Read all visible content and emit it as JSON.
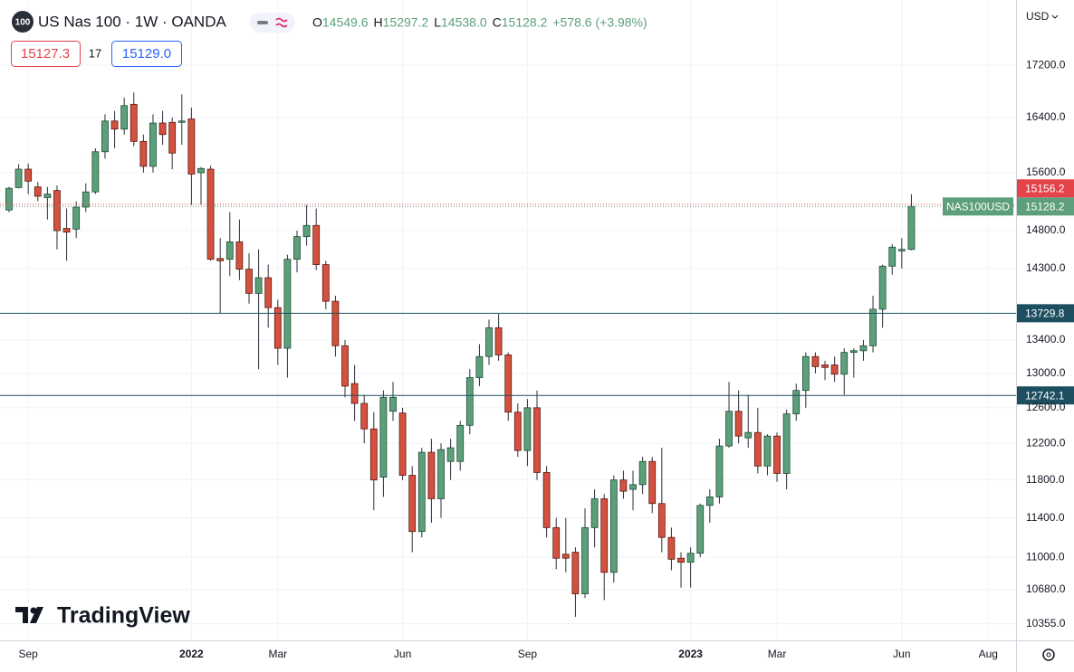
{
  "header": {
    "badge": "100",
    "title": "US Nas 100 · 1W · OANDA",
    "ohlc_keys": [
      "O",
      "H",
      "L",
      "C"
    ],
    "ohlc_texts": [
      "14549.6",
      "15297.2",
      "14538.0",
      "15128.2"
    ],
    "change": "+578.6 (+3.98%)",
    "bid": "15127.3",
    "spread": "17",
    "ask": "15129.0",
    "currency": "USD",
    "logo": "TradingView"
  },
  "chart_data": {
    "type": "candlestick",
    "symbol": "NAS100USD",
    "log_scale": true,
    "grid": true,
    "up_color": "#5e9f7b",
    "down_color": "#d4513f",
    "open": [
      15080,
      15390,
      15650,
      15400,
      15250,
      15350,
      14830,
      14820,
      15120,
      15330,
      15900,
      16350,
      16230,
      16600,
      16050,
      15690,
      16320,
      16330,
      16330,
      16380,
      15600,
      15650,
      14430,
      14420,
      14650,
      14290,
      13980,
      14180,
      13800,
      13300,
      14420,
      14720,
      14870,
      14350,
      13880,
      13330,
      12880,
      12650,
      12360,
      11830,
      12560,
      12540,
      11850,
      11260,
      12100,
      11600,
      12000,
      12000,
      12400,
      12950,
      13200,
      13550,
      13220,
      12550,
      12120,
      12600,
      11880,
      11300,
      11030,
      11050,
      10640,
      11300,
      11600,
      10850,
      11800,
      11700,
      11750,
      12000,
      11550,
      11200,
      10990,
      10950,
      11040,
      11530,
      11620,
      12170,
      12560,
      12260,
      12320,
      11950,
      12280,
      11870,
      12530,
      12800,
      13200,
      13100,
      13100,
      12990,
      13250,
      13270,
      13330,
      13780,
      14330,
      14530,
      14549.6
    ],
    "high": [
      15400,
      15720,
      15730,
      15470,
      15400,
      15420,
      15100,
      15200,
      15450,
      15950,
      16450,
      16500,
      16700,
      16780,
      16150,
      16450,
      16500,
      16400,
      16750,
      16550,
      15680,
      15700,
      14700,
      15050,
      14950,
      14500,
      14550,
      14350,
      13900,
      14480,
      14800,
      15150,
      15100,
      14400,
      13950,
      13400,
      13100,
      12750,
      12550,
      12800,
      12900,
      12600,
      11950,
      12150,
      12250,
      12200,
      12250,
      12450,
      13050,
      13350,
      13650,
      13720,
      13250,
      12650,
      12700,
      12800,
      11950,
      11400,
      11400,
      11100,
      11500,
      11700,
      11650,
      11850,
      11900,
      11900,
      12050,
      12050,
      12150,
      11300,
      11050,
      11100,
      11550,
      11700,
      12250,
      12900,
      12800,
      12750,
      12600,
      12300,
      12320,
      12580,
      12880,
      13250,
      13250,
      13150,
      13200,
      13300,
      13300,
      13400,
      13950,
      14350,
      14620,
      14700,
      15297.2
    ],
    "low": [
      15050,
      15380,
      15300,
      15200,
      14950,
      14550,
      14400,
      14700,
      15050,
      15300,
      15800,
      15950,
      16150,
      15980,
      15600,
      15600,
      16000,
      15650,
      16000,
      15150,
      15150,
      14400,
      13730,
      14200,
      14150,
      13850,
      13050,
      13550,
      13100,
      12950,
      14250,
      14600,
      14280,
      13780,
      13200,
      12720,
      12450,
      12200,
      11480,
      11620,
      12450,
      11800,
      11050,
      11200,
      11350,
      11400,
      11800,
      11900,
      12300,
      12850,
      13100,
      13150,
      12450,
      12050,
      11950,
      11800,
      11200,
      10880,
      10850,
      10420,
      10600,
      11100,
      10580,
      10750,
      11600,
      11480,
      11650,
      11450,
      11050,
      10870,
      10700,
      10700,
      11000,
      11350,
      11550,
      12150,
      12200,
      12150,
      11870,
      11850,
      11780,
      11700,
      12450,
      12600,
      13000,
      12920,
      12900,
      12750,
      12950,
      13150,
      13250,
      13550,
      14220,
      14300,
      14538
    ],
    "close": [
      15380,
      15650,
      15480,
      15270,
      15300,
      14800,
      14780,
      15120,
      15330,
      15900,
      16350,
      16230,
      16580,
      16050,
      15690,
      16320,
      16150,
      15880,
      16350,
      15580,
      15660,
      14420,
      14400,
      14650,
      14290,
      13980,
      14180,
      13800,
      13300,
      14420,
      14720,
      14870,
      14350,
      13880,
      13330,
      12850,
      12650,
      12360,
      11800,
      12720,
      12720,
      11850,
      11260,
      12100,
      11600,
      12130,
      12150,
      12400,
      12950,
      13200,
      13550,
      13220,
      12550,
      12120,
      12600,
      11880,
      11300,
      10990,
      10990,
      10640,
      11300,
      11600,
      10850,
      11800,
      11680,
      11750,
      12000,
      11550,
      11200,
      10980,
      10950,
      11040,
      11530,
      11620,
      12170,
      12560,
      12280,
      12320,
      11950,
      12280,
      11870,
      12530,
      12800,
      13200,
      13080,
      13070,
      12990,
      13250,
      13270,
      13330,
      13780,
      14330,
      14580,
      14549.6,
      15128.2
    ],
    "ylim": [
      10200,
      18250
    ],
    "yticks": [
      {
        "value": 10355,
        "label": "10355.0"
      },
      {
        "value": 10680,
        "label": "10680.0"
      },
      {
        "value": 11000,
        "label": "11000.0"
      },
      {
        "value": 11400,
        "label": "11400.0"
      },
      {
        "value": 11800,
        "label": "11800.0"
      },
      {
        "value": 12200,
        "label": "12200.0"
      },
      {
        "value": 12600,
        "label": "12600.0"
      },
      {
        "value": 13000,
        "label": "13000.0"
      },
      {
        "value": 13400,
        "label": "13400.0"
      },
      {
        "value": 14300,
        "label": "14300.0"
      },
      {
        "value": 14800,
        "label": "14800.0"
      },
      {
        "value": 15600,
        "label": "15600.0"
      },
      {
        "value": 16400,
        "label": "16400.0"
      },
      {
        "value": 17200,
        "label": "17200.0"
      }
    ],
    "xlim": [
      -0.94,
      104.9
    ],
    "xticks": [
      {
        "value": 2,
        "label": "Sep"
      },
      {
        "value": 19,
        "label": "2022"
      },
      {
        "value": 28,
        "label": "Mar"
      },
      {
        "value": 41,
        "label": "Jun"
      },
      {
        "value": 54,
        "label": "Sep"
      },
      {
        "value": 71,
        "label": "2023"
      },
      {
        "value": 80,
        "label": "Mar"
      },
      {
        "value": 93,
        "label": "Jun"
      },
      {
        "value": 102,
        "label": "Aug"
      }
    ],
    "hlines": [
      {
        "value": 15156.2,
        "color": "#e5434a",
        "style": "dotted"
      },
      {
        "value": 13729.8,
        "color": "#1d4f60",
        "style": "solid"
      },
      {
        "value": 12742.1,
        "color": "#1d4f60",
        "style": "solid"
      }
    ],
    "last_price_color": "#5e9f7b"
  }
}
